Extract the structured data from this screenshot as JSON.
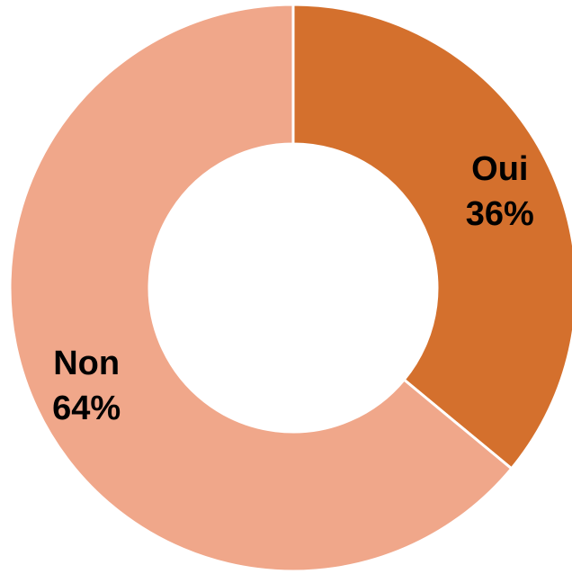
{
  "chart_data": {
    "type": "pie",
    "variant": "donut",
    "title": "",
    "slices": [
      {
        "label": "Oui",
        "value": 36,
        "value_label": "36%",
        "color": "#D4702D"
      },
      {
        "label": "Non",
        "value": 64,
        "value_label": "64%",
        "color": "#F0A78A"
      }
    ],
    "legend": "none",
    "start_angle_deg": 0,
    "direction": "clockwise"
  }
}
